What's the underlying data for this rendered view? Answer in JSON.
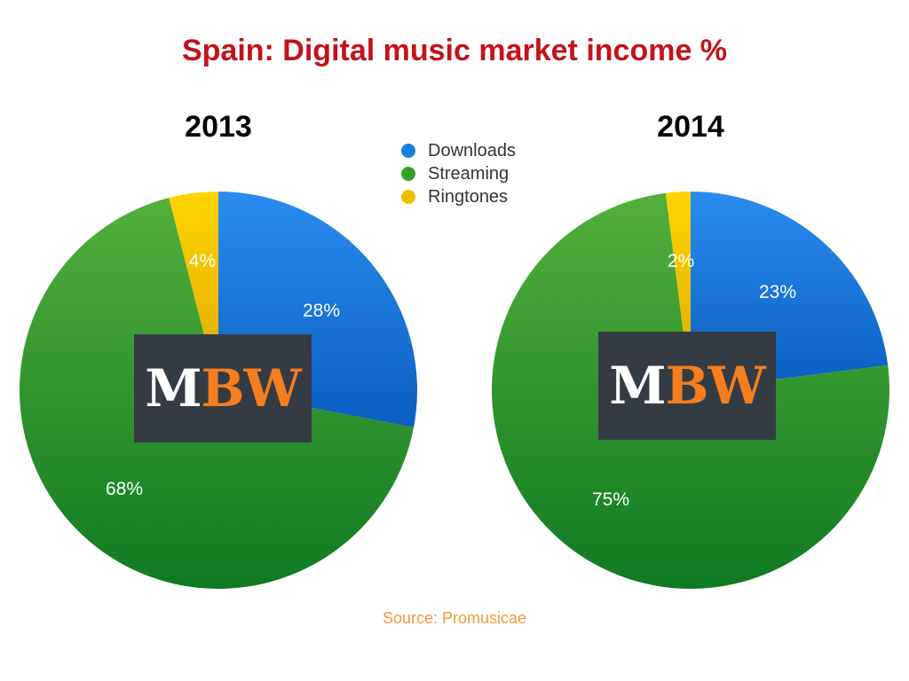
{
  "title": "Spain: Digital music market income %",
  "legend": [
    {
      "label": "Downloads",
      "color": "#1a7fe0"
    },
    {
      "label": "Streaming",
      "color": "#3a9e2a"
    },
    {
      "label": "Ringtones",
      "color": "#f0c000"
    }
  ],
  "logo": {
    "part1": "M",
    "part2": "BW"
  },
  "source": "Source: Promusicae",
  "chart_data": [
    {
      "type": "pie",
      "title": "2013",
      "categories": [
        "Downloads",
        "Streaming",
        "Ringtones"
      ],
      "values": [
        28,
        68,
        4
      ],
      "labels": [
        "28%",
        "68%",
        "4%"
      ]
    },
    {
      "type": "pie",
      "title": "2014",
      "categories": [
        "Downloads",
        "Streaming",
        "Ringtones"
      ],
      "values": [
        23,
        75,
        2
      ],
      "labels": [
        "23%",
        "75%",
        "2%"
      ]
    }
  ]
}
